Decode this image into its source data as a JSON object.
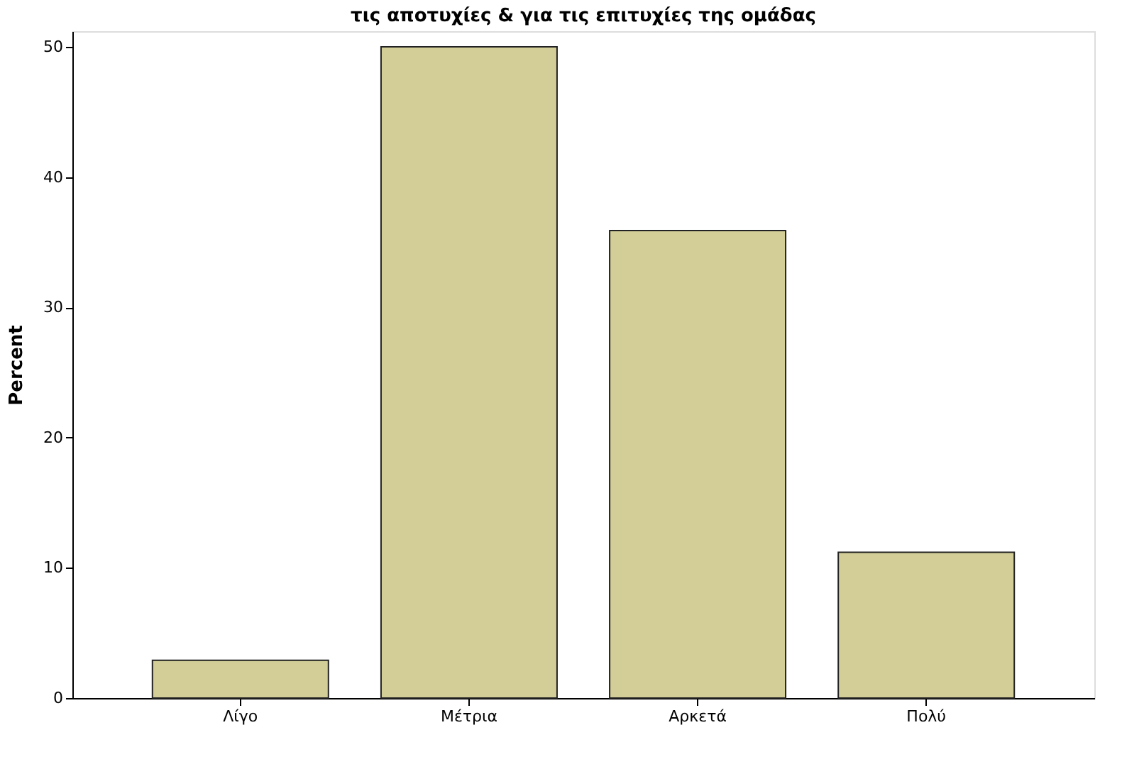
{
  "chart_data": {
    "type": "bar",
    "title": "τις αποτυχίες & για τις επιτυχίες της ομάδας",
    "ylabel": "Percent",
    "categories": [
      "Λίγο",
      "Μέτρια",
      "Αρκετά",
      "Πολύ"
    ],
    "values": [
      2.9,
      50.0,
      35.9,
      11.2
    ],
    "color": "#d3ce97",
    "ylim": [
      0,
      51.2
    ],
    "yticks": [
      0,
      10,
      20,
      30,
      40,
      50
    ],
    "grid": false
  }
}
